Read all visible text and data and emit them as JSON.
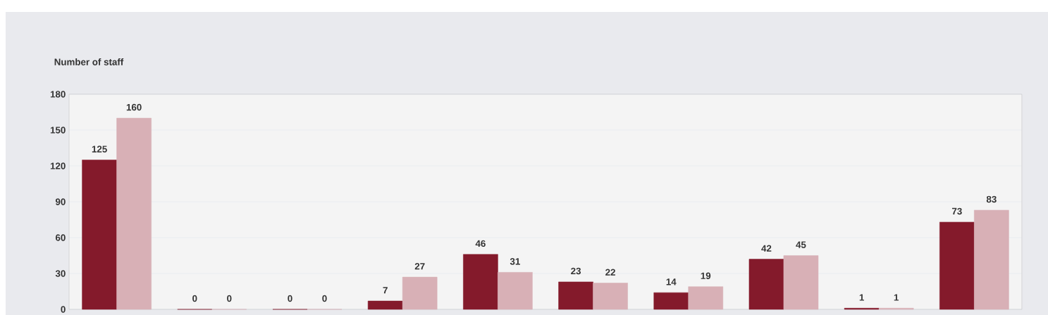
{
  "chart_data": {
    "type": "bar",
    "ylabel": "Number of staff",
    "categories": [
      null,
      null,
      null,
      null,
      null,
      null,
      null,
      null,
      null,
      null
    ],
    "series": [
      {
        "color": "#841a2b",
        "values": [
          125,
          0,
          0,
          7,
          46,
          23,
          14,
          42,
          1,
          73
        ]
      },
      {
        "color": "#d8b0b6",
        "values": [
          160,
          0,
          0,
          27,
          31,
          22,
          19,
          45,
          1,
          83
        ]
      }
    ],
    "ylim": [
      0,
      180
    ],
    "yticks": [
      0,
      30,
      60,
      90,
      120,
      150,
      180
    ],
    "grid": "y",
    "data_labels": true,
    "tick_labels": "y"
  }
}
